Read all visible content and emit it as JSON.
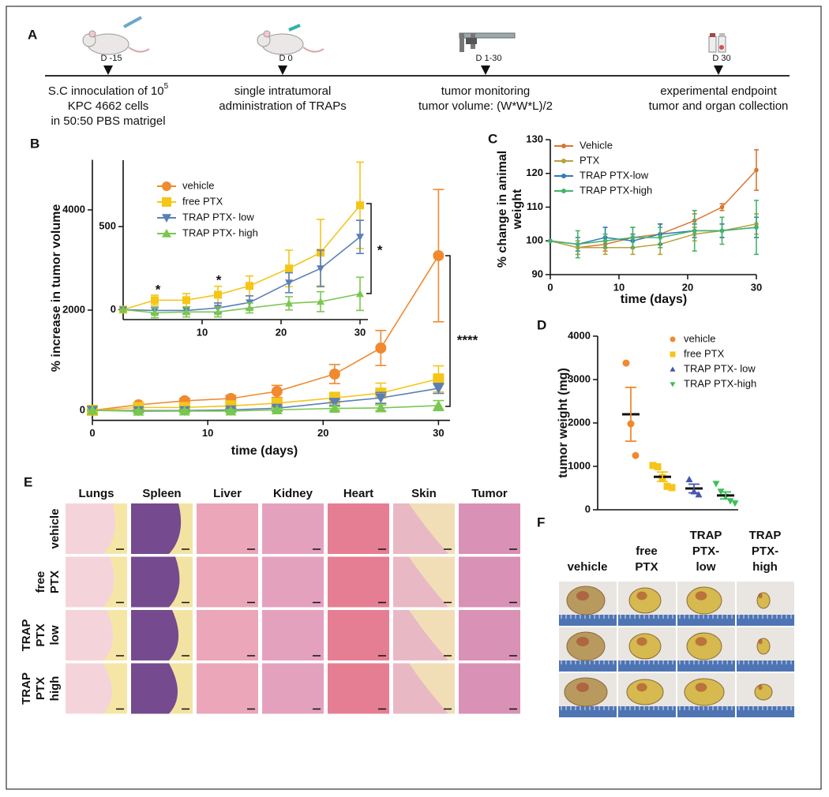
{
  "panel_labels": [
    "A",
    "B",
    "C",
    "D",
    "E",
    "F"
  ],
  "timeline": {
    "events": [
      {
        "day": "D -15",
        "lines": [
          "S.C innoculation of 10",
          "KPC 4662 cells",
          "in 50:50 PBS matrigel"
        ],
        "superscript": "5"
      },
      {
        "day": "D 0",
        "lines": [
          "single intratumoral",
          "administration of TRAPs"
        ]
      },
      {
        "day": "D 1-30",
        "lines": [
          "tumor monitoring",
          "tumor volume: (W*W*L)/2"
        ]
      },
      {
        "day": "D 30",
        "lines": [
          "experimental endpoint",
          "tumor and organ collection"
        ]
      }
    ]
  },
  "chart_data": [
    {
      "type": "line",
      "x_label": "time (days)",
      "y_label": "%  increase in tumor volume",
      "x": [
        0,
        4,
        8,
        12,
        16,
        21,
        25,
        30
      ],
      "xlim": [
        0,
        31
      ],
      "xticks": [
        0,
        10,
        20,
        30
      ],
      "ylim": [
        -200,
        5000
      ],
      "yticks": [
        0,
        2000,
        4000
      ],
      "series": [
        {
          "name": "vehicle",
          "color": "#f0892f",
          "marker": "circle",
          "values": [
            0,
            110,
            190,
            236,
            378,
            724,
            1244,
            3087
          ],
          "errors": [
            0,
            40,
            50,
            60,
            120,
            190,
            350,
            1320
          ]
        },
        {
          "name": "free PTX",
          "color": "#f5c518",
          "marker": "square",
          "values": [
            0,
            57,
            57,
            90,
            143,
            248,
            343,
            628
          ],
          "errors": [
            0,
            30,
            40,
            50,
            60,
            110,
            200,
            260
          ]
        },
        {
          "name": "TRAP PTX- low",
          "color": "#5b7fb5",
          "marker": "triangle-down",
          "values": [
            0,
            -5,
            -5,
            10,
            43,
            162,
            248,
            438
          ],
          "errors": [
            0,
            20,
            20,
            30,
            40,
            60,
            110,
            100
          ]
        },
        {
          "name": "TRAP PTX- high",
          "color": "#7ac74f",
          "marker": "triangle-up",
          "values": [
            0,
            -19,
            -14,
            -14,
            10,
            38,
            48,
            95
          ],
          "errors": [
            0,
            30,
            30,
            30,
            30,
            40,
            60,
            100
          ]
        }
      ],
      "annotations": [
        "****"
      ],
      "inset": {
        "x": [
          0,
          4,
          8,
          12,
          16,
          21,
          25,
          30
        ],
        "xlim": [
          0,
          31
        ],
        "xticks": [
          10,
          20,
          30
        ],
        "ylim": [
          -60,
          900
        ],
        "yticks": [
          0,
          500
        ],
        "series": [
          {
            "color": "#f5c518",
            "marker": "square",
            "values": [
              0,
              57,
              57,
              90,
              143,
              248,
              343,
              628
            ],
            "errors": [
              0,
              30,
              40,
              50,
              60,
              110,
              200,
              260
            ]
          },
          {
            "color": "#5b7fb5",
            "marker": "triangle-down",
            "values": [
              0,
              -5,
              -5,
              10,
              43,
              162,
              248,
              438
            ],
            "errors": [
              0,
              20,
              20,
              30,
              40,
              60,
              110,
              100
            ]
          },
          {
            "color": "#7ac74f",
            "marker": "triangle-up",
            "values": [
              0,
              -19,
              -14,
              -14,
              10,
              38,
              48,
              95
            ],
            "errors": [
              0,
              30,
              30,
              30,
              30,
              40,
              60,
              100
            ]
          }
        ],
        "annotations": [
          "*",
          "*",
          "*"
        ]
      }
    },
    {
      "type": "line",
      "x_label": "time (days)",
      "y_label": [
        "% change in animal",
        "weight"
      ],
      "x": [
        0,
        4,
        8,
        12,
        16,
        21,
        25,
        30
      ],
      "xlim": [
        0,
        30
      ],
      "xticks": [
        0,
        10,
        20,
        30
      ],
      "ylim": [
        90,
        130
      ],
      "yticks": [
        90,
        100,
        110,
        120,
        130
      ],
      "series": [
        {
          "name": "Vehicle",
          "color": "#d9772f",
          "marker": "circle",
          "values": [
            100,
            98,
            99,
            101,
            102,
            106,
            110,
            121
          ],
          "errors": [
            0,
            2,
            2,
            3,
            3,
            2,
            1,
            6
          ]
        },
        {
          "name": "PTX",
          "color": "#b5a33e",
          "marker": "circle",
          "values": [
            100,
            98,
            98,
            98,
            99,
            102,
            103,
            105
          ],
          "errors": [
            0,
            2,
            2,
            2,
            3,
            2,
            2,
            3
          ]
        },
        {
          "name": "TRAP PTX-low",
          "color": "#2e7bb4",
          "marker": "circle",
          "values": [
            100,
            99,
            101,
            100,
            102,
            103,
            103,
            104
          ],
          "errors": [
            0,
            2,
            3,
            2,
            3,
            2,
            2,
            3
          ]
        },
        {
          "name": "TRAP PTX-high",
          "color": "#45b36b",
          "marker": "circle",
          "values": [
            100,
            99,
            100,
            101,
            101,
            103,
            103,
            104
          ],
          "errors": [
            0,
            4,
            2,
            3,
            3,
            6,
            4,
            8
          ]
        }
      ]
    },
    {
      "type": "dot",
      "y_label": "tumor weight (mg)",
      "ylim": [
        0,
        4000
      ],
      "yticks": [
        0,
        1000,
        2000,
        3000,
        4000
      ],
      "series": [
        {
          "name": "vehicle",
          "color": "#f0892f",
          "marker": "circle",
          "values": [
            3380,
            1980,
            1250
          ],
          "mean": 2200,
          "error": 620
        },
        {
          "name": "free PTX",
          "color": "#f5c518",
          "marker": "square",
          "values": [
            1020,
            990,
            740,
            540,
            510
          ],
          "mean": 760,
          "error": 110
        },
        {
          "name": "TRAP PTX- low",
          "color": "#4456b0",
          "marker": "triangle-up",
          "values": [
            700,
            420,
            350
          ],
          "mean": 490,
          "error": 100
        },
        {
          "name": "TRAP PTX-high",
          "color": "#3cbf5a",
          "marker": "triangle-down",
          "values": [
            600,
            420,
            300,
            200,
            150
          ],
          "mean": 330,
          "error": 80
        }
      ]
    }
  ],
  "histology": {
    "columns": [
      "Lungs",
      "Spleen",
      "Liver",
      "Kidney",
      "Heart",
      "Skin",
      "Tumor"
    ],
    "rows": [
      [
        "vehicle"
      ],
      [
        "free",
        "PTX"
      ],
      [
        "TRAP",
        "PTX",
        "low"
      ],
      [
        "TRAP",
        "PTX",
        "high"
      ]
    ]
  },
  "photos": {
    "columns": [
      [
        "vehicle"
      ],
      [
        "free",
        "PTX"
      ],
      [
        "TRAP",
        "PTX-",
        "low"
      ],
      [
        "TRAP",
        "PTX-",
        "high"
      ]
    ]
  }
}
